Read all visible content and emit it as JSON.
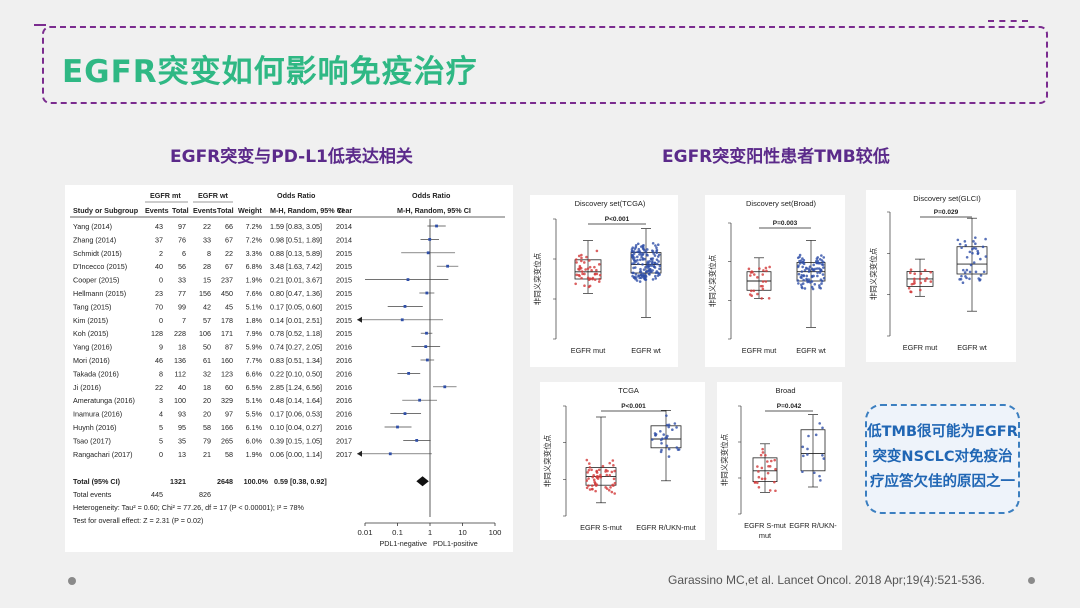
{
  "slide": {
    "title": "EGFR突变如何影响免疫治疗",
    "left_heading": "EGFR突变与PD-L1低表达相关",
    "right_heading": "EGFR突变阳性患者TMB较低",
    "callout_lines": [
      "低TMB很可能为EGFR",
      "突变NSCLC对免疫治",
      "疗应答欠佳的原因之一"
    ],
    "citation": "Garassino MC,et al. Lancet Oncol. 2018 Apr;19(4):521-536."
  },
  "colors": {
    "title": "#2fb884",
    "heading": "#5b2a8a",
    "frame": "#7b2c8f",
    "callout": "#2066b4",
    "red_series": "#d23a3a",
    "blue_series": "#2f4fa8"
  },
  "forest": {
    "head_group1": "EGFR mt",
    "head_group2": "EGFR wt",
    "head_or": "Odds Ratio",
    "head_or2": "Odds Ratio",
    "col_headers": [
      "Study or Subgroup",
      "Events",
      "Total",
      "Events",
      "Total",
      "Weight",
      "M-H, Random, 95% CI",
      "Year",
      "M-H, Random, 95% CI"
    ],
    "rows": [
      {
        "study": "Yang (2014)",
        "e1": "43",
        "t1": "97",
        "e2": "22",
        "t2": "66",
        "w": "7.2%",
        "ci": "1.59 [0.83, 3.05]",
        "year": "2014",
        "or": 1.59,
        "lo": 0.83,
        "hi": 3.05
      },
      {
        "study": "Zhang (2014)",
        "e1": "37",
        "t1": "76",
        "e2": "33",
        "t2": "67",
        "w": "7.2%",
        "ci": "0.98 [0.51, 1.89]",
        "year": "2014",
        "or": 0.98,
        "lo": 0.51,
        "hi": 1.89
      },
      {
        "study": "Schmidt (2015)",
        "e1": "2",
        "t1": "6",
        "e2": "8",
        "t2": "22",
        "w": "3.3%",
        "ci": "0.88 [0.13, 5.89]",
        "year": "2015",
        "or": 0.88,
        "lo": 0.13,
        "hi": 5.89
      },
      {
        "study": "D'Incecco (2015)",
        "e1": "40",
        "t1": "56",
        "e2": "28",
        "t2": "67",
        "w": "6.8%",
        "ci": "3.48 [1.63, 7.42]",
        "year": "2015",
        "or": 3.48,
        "lo": 1.63,
        "hi": 7.42
      },
      {
        "study": "Cooper (2015)",
        "e1": "0",
        "t1": "33",
        "e2": "15",
        "t2": "237",
        "w": "1.9%",
        "ci": "0.21 [0.01, 3.67]",
        "year": "2015",
        "or": 0.21,
        "lo": 0.01,
        "hi": 3.67
      },
      {
        "study": "Hellmann (2015)",
        "e1": "23",
        "t1": "77",
        "e2": "156",
        "t2": "450",
        "w": "7.6%",
        "ci": "0.80 [0.47, 1.36]",
        "year": "2015",
        "or": 0.8,
        "lo": 0.47,
        "hi": 1.36
      },
      {
        "study": "Tang (2015)",
        "e1": "70",
        "t1": "99",
        "e2": "42",
        "t2": "45",
        "w": "5.1%",
        "ci": "0.17 [0.05, 0.60]",
        "year": "2015",
        "or": 0.17,
        "lo": 0.05,
        "hi": 0.6
      },
      {
        "study": "Kim (2015)",
        "e1": "0",
        "t1": "7",
        "e2": "57",
        "t2": "178",
        "w": "1.8%",
        "ci": "0.14 [0.01, 2.51]",
        "year": "2015",
        "or": 0.14,
        "lo": 0.005,
        "hi": 2.51
      },
      {
        "study": "Koh (2015)",
        "e1": "128",
        "t1": "228",
        "e2": "106",
        "t2": "171",
        "w": "7.9%",
        "ci": "0.78 [0.52, 1.18]",
        "year": "2015",
        "or": 0.78,
        "lo": 0.52,
        "hi": 1.18
      },
      {
        "study": "Yang (2016)",
        "e1": "9",
        "t1": "18",
        "e2": "50",
        "t2": "87",
        "w": "5.9%",
        "ci": "0.74 [0.27, 2.05]",
        "year": "2016",
        "or": 0.74,
        "lo": 0.27,
        "hi": 2.05
      },
      {
        "study": "Mori (2016)",
        "e1": "46",
        "t1": "136",
        "e2": "61",
        "t2": "160",
        "w": "7.7%",
        "ci": "0.83 [0.51, 1.34]",
        "year": "2016",
        "or": 0.83,
        "lo": 0.51,
        "hi": 1.34
      },
      {
        "study": "Takada (2016)",
        "e1": "8",
        "t1": "112",
        "e2": "32",
        "t2": "123",
        "w": "6.6%",
        "ci": "0.22 [0.10, 0.50]",
        "year": "2016",
        "or": 0.22,
        "lo": 0.1,
        "hi": 0.5
      },
      {
        "study": "Ji (2016)",
        "e1": "22",
        "t1": "40",
        "e2": "18",
        "t2": "60",
        "w": "6.5%",
        "ci": "2.85 [1.24, 6.56]",
        "year": "2016",
        "or": 2.85,
        "lo": 1.24,
        "hi": 6.56
      },
      {
        "study": "Ameratunga (2016)",
        "e1": "3",
        "t1": "100",
        "e2": "20",
        "t2": "329",
        "w": "5.1%",
        "ci": "0.48 [0.14, 1.64]",
        "year": "2016",
        "or": 0.48,
        "lo": 0.14,
        "hi": 1.64
      },
      {
        "study": "Inamura (2016)",
        "e1": "4",
        "t1": "93",
        "e2": "20",
        "t2": "97",
        "w": "5.5%",
        "ci": "0.17 [0.06, 0.53]",
        "year": "2016",
        "or": 0.17,
        "lo": 0.06,
        "hi": 0.53
      },
      {
        "study": "Huynh (2016)",
        "e1": "5",
        "t1": "95",
        "e2": "58",
        "t2": "166",
        "w": "6.1%",
        "ci": "0.10 [0.04, 0.27]",
        "year": "2016",
        "or": 0.1,
        "lo": 0.04,
        "hi": 0.27
      },
      {
        "study": "Tsao (2017)",
        "e1": "5",
        "t1": "35",
        "e2": "79",
        "t2": "265",
        "w": "6.0%",
        "ci": "0.39 [0.15, 1.05]",
        "year": "2017",
        "or": 0.39,
        "lo": 0.15,
        "hi": 1.05
      },
      {
        "study": "Rangachari (2017)",
        "e1": "0",
        "t1": "13",
        "e2": "21",
        "t2": "58",
        "w": "1.9%",
        "ci": "0.06 [0.00, 1.14]",
        "year": "2017",
        "or": 0.06,
        "lo": 0.005,
        "hi": 1.14
      }
    ],
    "total": {
      "study": "Total (95% CI)",
      "t1": "1321",
      "t2": "2648",
      "w": "100.0%",
      "ci": "0.59 [0.38, 0.92]",
      "or": 0.59,
      "lo": 0.38,
      "hi": 0.92
    },
    "total_events": {
      "label": "Total events",
      "e1": "445",
      "e2": "826"
    },
    "heterogeneity": "Heterogeneity: Tau² = 0.60; Chi² = 77.26, df = 17 (P < 0.00001); I² = 78%",
    "overall_effect": "Test for overall effect: Z = 2.31 (P = 0.02)",
    "axis_ticks": [
      "0.01",
      "0.1",
      "1",
      "10",
      "100"
    ],
    "axis_label_left": "PDL1-negative",
    "axis_label_right": "PDL1-positive"
  },
  "tmb_panels": {
    "ylabel": "非同义突变位点",
    "tcga": {
      "title": "Discovery set(TCGA)",
      "p": "P<0.001",
      "cats": [
        "EGFR mut",
        "EGFR wt"
      ]
    },
    "broad": {
      "title": "Discovery set(Broad)",
      "p": "P=0.003",
      "cats": [
        "EGFR mut",
        "EGFR wt"
      ]
    },
    "glci": {
      "title": "Discovery set(GLCI)",
      "p": "P=0.029",
      "cats": [
        "EGFR mut",
        "EGFR wt"
      ]
    },
    "tcga2": {
      "title": "TCGA",
      "p": "P<0.001",
      "cats": [
        "EGFR S-mut",
        "EGFR R/UKN-mut"
      ]
    },
    "broad2": {
      "title": "Broad",
      "p": "P=0.042",
      "cats": [
        "EGFR S-mut",
        "EGFR R/UKN-",
        "mut"
      ]
    }
  }
}
